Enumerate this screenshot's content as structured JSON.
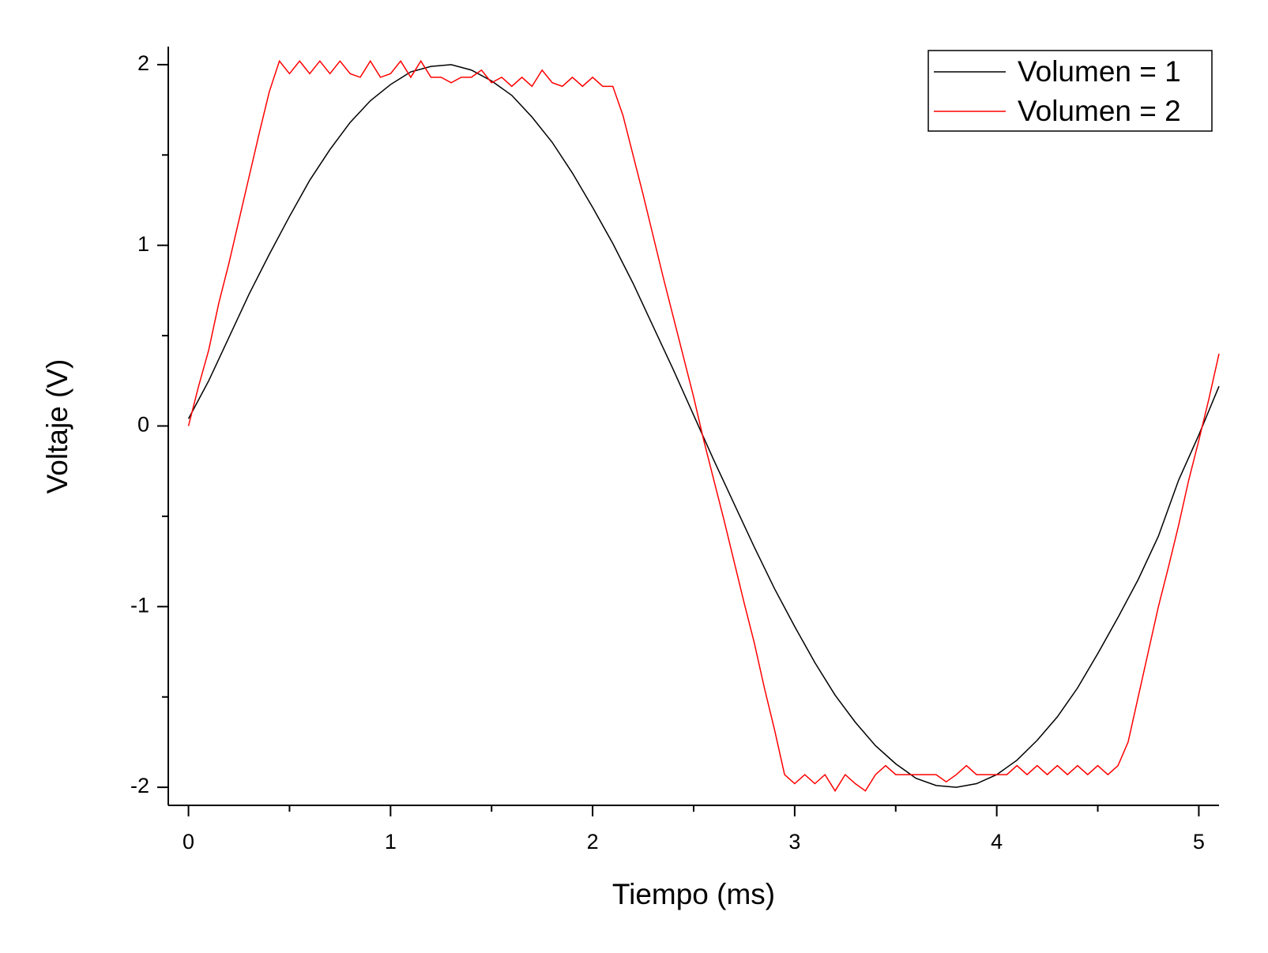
{
  "chart_data": {
    "type": "line",
    "xlabel": "Tiempo (ms)",
    "ylabel": "Voltaje (V)",
    "xlim": [
      -0.1,
      5.1
    ],
    "ylim": [
      -2.1,
      2.1
    ],
    "xticks": [
      0,
      1,
      2,
      3,
      4,
      5
    ],
    "yticks": [
      -2,
      -1,
      0,
      1,
      2
    ],
    "xminorticks": [
      0.5,
      1.5,
      2.5,
      3.5,
      4.5
    ],
    "yminorticks": [
      -1.5,
      -0.5,
      0.5,
      1.5
    ],
    "grid": false,
    "legend": "top-right",
    "series": [
      {
        "name": "Volumen = 1",
        "color": "#000000",
        "x": [
          0,
          0.1,
          0.2,
          0.3,
          0.4,
          0.5,
          0.6,
          0.7,
          0.8,
          0.9,
          1.0,
          1.1,
          1.2,
          1.3,
          1.4,
          1.5,
          1.6,
          1.7,
          1.8,
          1.9,
          2.0,
          2.1,
          2.2,
          2.3,
          2.4,
          2.5,
          2.6,
          2.7,
          2.8,
          2.9,
          3.0,
          3.1,
          3.2,
          3.3,
          3.4,
          3.5,
          3.6,
          3.7,
          3.8,
          3.9,
          4.0,
          4.1,
          4.2,
          4.3,
          4.4,
          4.5,
          4.6,
          4.7,
          4.8,
          4.9,
          5.0,
          5.1
        ],
        "values": [
          0.04,
          0.25,
          0.49,
          0.73,
          0.95,
          1.16,
          1.36,
          1.53,
          1.68,
          1.8,
          1.89,
          1.96,
          1.99,
          2.0,
          1.97,
          1.91,
          1.83,
          1.71,
          1.57,
          1.4,
          1.21,
          1.01,
          0.79,
          0.55,
          0.31,
          0.06,
          -0.19,
          -0.43,
          -0.67,
          -0.9,
          -1.11,
          -1.31,
          -1.49,
          -1.64,
          -1.77,
          -1.87,
          -1.95,
          -1.99,
          -2.0,
          -1.98,
          -1.93,
          -1.85,
          -1.74,
          -1.61,
          -1.45,
          -1.26,
          -1.06,
          -0.85,
          -0.61,
          -0.3,
          -0.05,
          0.22
        ]
      },
      {
        "name": "Volumen = 2",
        "color": "#ff0000",
        "x": [
          0,
          0.05,
          0.1,
          0.15,
          0.2,
          0.25,
          0.3,
          0.35,
          0.4,
          0.45,
          0.5,
          0.55,
          0.6,
          0.65,
          0.7,
          0.75,
          0.8,
          0.85,
          0.9,
          0.95,
          1.0,
          1.05,
          1.1,
          1.15,
          1.2,
          1.25,
          1.3,
          1.35,
          1.4,
          1.45,
          1.5,
          1.55,
          1.6,
          1.65,
          1.7,
          1.75,
          1.8,
          1.85,
          1.9,
          1.95,
          2.0,
          2.05,
          2.1,
          2.15,
          2.2,
          2.25,
          2.3,
          2.35,
          2.4,
          2.45,
          2.5,
          2.55,
          2.6,
          2.65,
          2.7,
          2.75,
          2.8,
          2.85,
          2.9,
          2.95,
          3.0,
          3.05,
          3.1,
          3.15,
          3.2,
          3.25,
          3.3,
          3.35,
          3.4,
          3.45,
          3.5,
          3.55,
          3.6,
          3.65,
          3.7,
          3.75,
          3.8,
          3.85,
          3.9,
          3.95,
          4.0,
          4.05,
          4.1,
          4.15,
          4.2,
          4.25,
          4.3,
          4.35,
          4.4,
          4.45,
          4.5,
          4.55,
          4.6,
          4.65,
          4.7,
          4.75,
          4.8,
          4.85,
          4.9,
          4.95,
          5.0,
          5.05,
          5.1
        ],
        "values": [
          0,
          0.22,
          0.42,
          0.68,
          0.9,
          1.14,
          1.38,
          1.62,
          1.85,
          2.02,
          1.95,
          2.02,
          1.95,
          2.02,
          1.95,
          2.02,
          1.95,
          1.93,
          2.02,
          1.93,
          1.95,
          2.02,
          1.93,
          2.02,
          1.93,
          1.93,
          1.9,
          1.93,
          1.93,
          1.97,
          1.9,
          1.93,
          1.88,
          1.93,
          1.88,
          1.97,
          1.9,
          1.88,
          1.93,
          1.88,
          1.93,
          1.88,
          1.88,
          1.72,
          1.5,
          1.28,
          1.05,
          0.82,
          0.6,
          0.38,
          0.16,
          -0.08,
          -0.3,
          -0.52,
          -0.75,
          -0.98,
          -1.2,
          -1.45,
          -1.68,
          -1.93,
          -1.98,
          -1.93,
          -1.98,
          -1.93,
          -2.02,
          -1.93,
          -1.98,
          -2.02,
          -1.93,
          -1.88,
          -1.93,
          -1.93,
          -1.93,
          -1.93,
          -1.93,
          -1.97,
          -1.93,
          -1.88,
          -1.93,
          -1.93,
          -1.93,
          -1.93,
          -1.88,
          -1.93,
          -1.88,
          -1.93,
          -1.88,
          -1.93,
          -1.88,
          -1.93,
          -1.88,
          -1.93,
          -1.88,
          -1.75,
          -1.5,
          -1.25,
          -1.0,
          -0.78,
          -0.55,
          -0.3,
          -0.08,
          0.15,
          0.4
        ]
      }
    ]
  }
}
